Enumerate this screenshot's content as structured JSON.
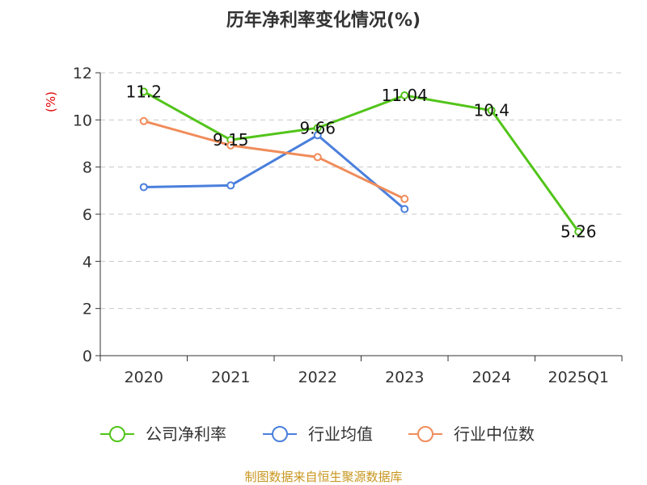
{
  "chart_data": {
    "type": "line",
    "title": "历年净利率变化情况(%)",
    "ylabel": "(%)",
    "categories": [
      "2020",
      "2021",
      "2022",
      "2023",
      "2024",
      "2025Q1"
    ],
    "ylim": [
      0,
      12
    ],
    "yticks": [
      0,
      2,
      4,
      6,
      8,
      10,
      12
    ],
    "grid": true,
    "legend_position": "bottom",
    "series": [
      {
        "name": "公司净利率",
        "color": "#52c41a",
        "values": [
          11.2,
          9.15,
          9.66,
          11.04,
          10.4,
          5.26
        ],
        "labels": [
          "11.2",
          "9.15",
          "9.66",
          "11.04",
          "10.4",
          "5.26"
        ]
      },
      {
        "name": "行业均值",
        "color": "#4a7fdc",
        "values": [
          7.15,
          7.22,
          9.35,
          6.22,
          null,
          null
        ]
      },
      {
        "name": "行业中位数",
        "color": "#f08c5a",
        "values": [
          9.95,
          8.92,
          8.42,
          6.65,
          null,
          null
        ]
      }
    ]
  },
  "footer": {
    "source": "制图数据来自恒生聚源数据库"
  }
}
